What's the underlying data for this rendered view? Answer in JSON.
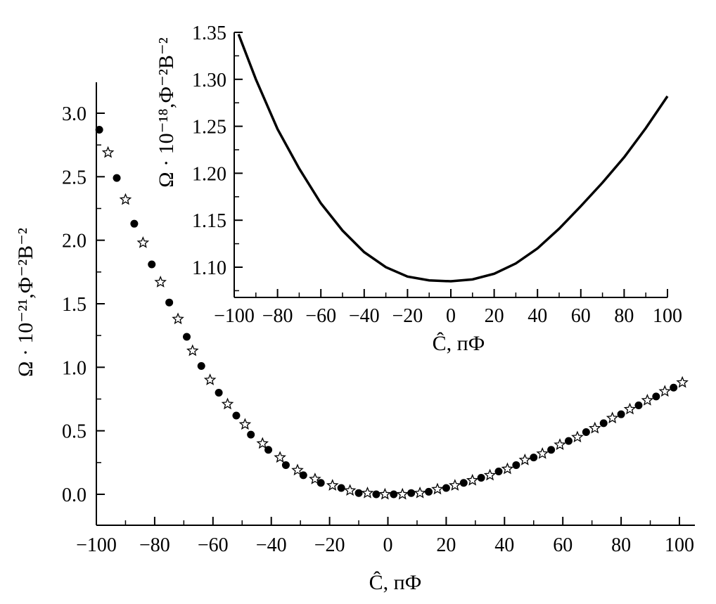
{
  "chart_data": [
    {
      "type": "scatter",
      "title": "",
      "xlabel": "Ĉ, пФ",
      "ylabel": "Ω · 10⁻²¹,Ф⁻²В⁻²",
      "xlim": [
        -100,
        102
      ],
      "ylim": [
        -0.25,
        3.25
      ],
      "x_ticks": [
        "−100",
        "−80",
        "−60",
        "−40",
        "−20",
        "0",
        "20",
        "40",
        "60",
        "80",
        "100"
      ],
      "y_ticks": [
        "0.0",
        "0.5",
        "1.0",
        "1.5",
        "2.0",
        "2.5",
        "3.0"
      ],
      "grid": false,
      "series": [
        {
          "marker": "filled-circle",
          "color": "#000000",
          "x": [
            -99,
            -93,
            -87,
            -81,
            -75,
            -69,
            -64,
            -58,
            -52,
            -47,
            -41,
            -35,
            -29,
            -23,
            -16,
            -10,
            -4,
            2,
            8,
            14,
            20,
            26,
            32,
            38,
            44,
            50,
            56,
            62,
            68,
            74,
            80,
            86,
            92,
            98
          ],
          "y": [
            2.87,
            2.49,
            2.13,
            1.81,
            1.51,
            1.24,
            1.01,
            0.8,
            0.62,
            0.47,
            0.35,
            0.23,
            0.15,
            0.09,
            0.05,
            0.01,
            0.0,
            0.0,
            0.01,
            0.02,
            0.05,
            0.09,
            0.13,
            0.18,
            0.23,
            0.29,
            0.35,
            0.42,
            0.49,
            0.56,
            0.63,
            0.7,
            0.77,
            0.84
          ]
        },
        {
          "marker": "open-star",
          "color": "#000000",
          "x": [
            -96,
            -90,
            -84,
            -78,
            -72,
            -67,
            -61,
            -55,
            -49,
            -43,
            -37,
            -31,
            -25,
            -19,
            -13,
            -7,
            -1,
            5,
            11,
            17,
            23,
            29,
            35,
            41,
            47,
            53,
            59,
            65,
            71,
            77,
            83,
            89,
            95,
            101
          ],
          "y": [
            2.69,
            2.32,
            1.98,
            1.67,
            1.38,
            1.13,
            0.9,
            0.71,
            0.55,
            0.4,
            0.29,
            0.19,
            0.12,
            0.07,
            0.03,
            0.01,
            0.0,
            0.0,
            0.01,
            0.04,
            0.07,
            0.11,
            0.15,
            0.2,
            0.27,
            0.32,
            0.39,
            0.45,
            0.52,
            0.6,
            0.67,
            0.74,
            0.81,
            0.88
          ]
        }
      ]
    },
    {
      "type": "line",
      "title": "",
      "xlabel": "Ĉ, пФ",
      "ylabel": "Ω · 10⁻¹⁸,Ф⁻²В⁻²",
      "xlim": [
        -100,
        100
      ],
      "ylim": [
        1.07,
        1.35
      ],
      "x_ticks": [
        "−100",
        "−80",
        "−60",
        "−40",
        "−20",
        "0",
        "20",
        "40",
        "60",
        "80",
        "100"
      ],
      "y_ticks": [
        "1.10",
        "1.15",
        "1.20",
        "1.25",
        "1.30",
        "1.35"
      ],
      "grid": false,
      "series": [
        {
          "color": "#000000",
          "x": [
            -98,
            -90,
            -80,
            -70,
            -60,
            -50,
            -40,
            -30,
            -20,
            -10,
            0,
            10,
            20,
            30,
            40,
            50,
            60,
            70,
            80,
            90,
            100
          ],
          "y": [
            1.348,
            1.3,
            1.247,
            1.205,
            1.168,
            1.139,
            1.116,
            1.1,
            1.09,
            1.086,
            1.085,
            1.087,
            1.093,
            1.104,
            1.12,
            1.141,
            1.165,
            1.19,
            1.217,
            1.248,
            1.282
          ]
        }
      ]
    }
  ]
}
